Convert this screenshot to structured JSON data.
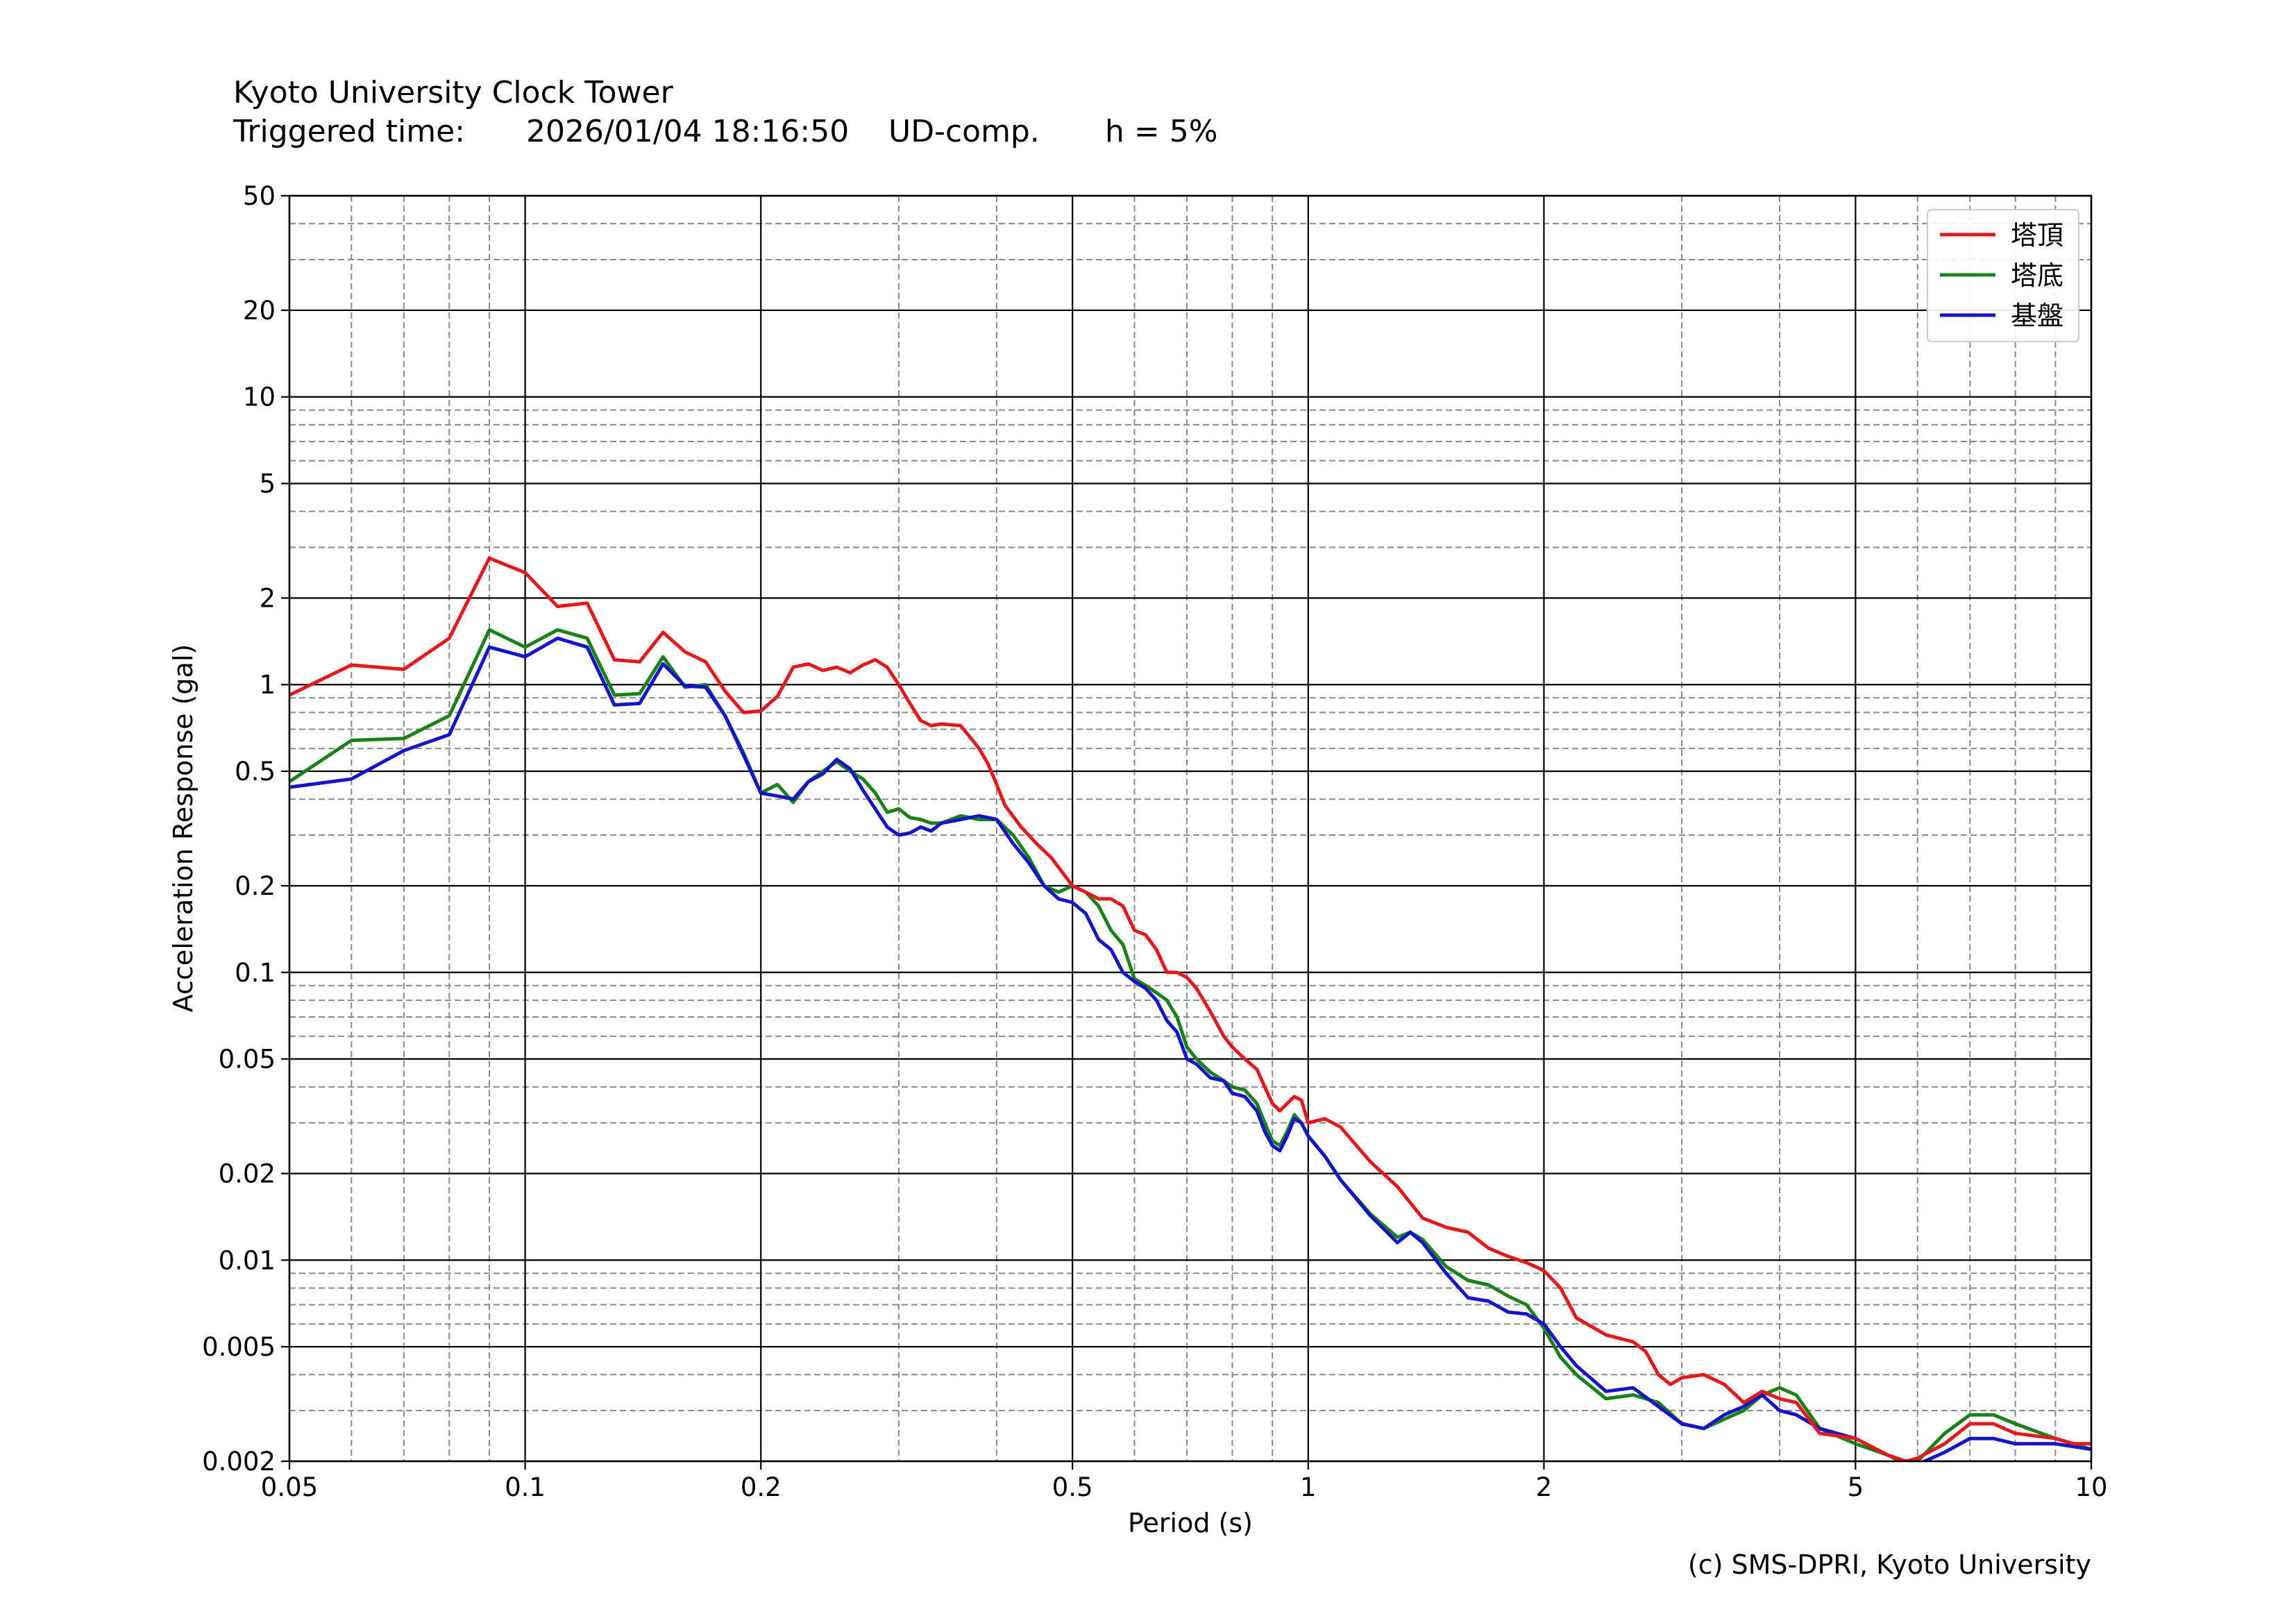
{
  "header": {
    "station": "Kyoto University Clock Tower",
    "trigger_label": "Triggered time:",
    "trigger_time": "2026/01/04 18:16:50",
    "component": "UD-comp.",
    "damping": "h = 5%"
  },
  "copyright": "(c) SMS-DPRI, Kyoto University",
  "chart_data": {
    "type": "line",
    "xscale": "log",
    "yscale": "log",
    "xlabel": "Period (s)",
    "ylabel": "Acceleration Response (gal)",
    "xlim": [
      0.05,
      10
    ],
    "ylim": [
      0.002,
      50
    ],
    "grid": true,
    "legend_position": "top-right",
    "x_ticks": [
      {
        "value": 0.05,
        "label": "0.05"
      },
      {
        "value": 0.1,
        "label": "0.1"
      },
      {
        "value": 0.2,
        "label": "0.2"
      },
      {
        "value": 0.5,
        "label": "0.5"
      },
      {
        "value": 1,
        "label": "1"
      },
      {
        "value": 2,
        "label": "2"
      },
      {
        "value": 5,
        "label": "5"
      },
      {
        "value": 10,
        "label": "10"
      }
    ],
    "y_ticks": [
      {
        "value": 0.002,
        "label": "0.002"
      },
      {
        "value": 0.005,
        "label": "0.005"
      },
      {
        "value": 0.01,
        "label": "0.01"
      },
      {
        "value": 0.02,
        "label": "0.02"
      },
      {
        "value": 0.05,
        "label": "0.05"
      },
      {
        "value": 0.1,
        "label": "0.1"
      },
      {
        "value": 0.2,
        "label": "0.2"
      },
      {
        "value": 0.5,
        "label": "0.5"
      },
      {
        "value": 1,
        "label": "1"
      },
      {
        "value": 2,
        "label": "2"
      },
      {
        "value": 5,
        "label": "5"
      },
      {
        "value": 10,
        "label": "10"
      },
      {
        "value": 20,
        "label": "20"
      },
      {
        "value": 50,
        "label": "50"
      }
    ],
    "series": [
      {
        "name": "塔頂",
        "color": "#e31a1c",
        "points": [
          [
            0.05,
            0.92
          ],
          [
            0.06,
            1.17
          ],
          [
            0.07,
            1.13
          ],
          [
            0.08,
            1.45
          ],
          [
            0.09,
            2.75
          ],
          [
            0.1,
            2.45
          ],
          [
            0.11,
            1.87
          ],
          [
            0.12,
            1.92
          ],
          [
            0.13,
            1.22
          ],
          [
            0.14,
            1.2
          ],
          [
            0.15,
            1.52
          ],
          [
            0.16,
            1.3
          ],
          [
            0.17,
            1.2
          ],
          [
            0.18,
            0.95
          ],
          [
            0.19,
            0.8
          ],
          [
            0.2,
            0.81
          ],
          [
            0.21,
            0.91
          ],
          [
            0.22,
            1.15
          ],
          [
            0.23,
            1.18
          ],
          [
            0.24,
            1.12
          ],
          [
            0.25,
            1.15
          ],
          [
            0.26,
            1.1
          ],
          [
            0.27,
            1.17
          ],
          [
            0.28,
            1.22
          ],
          [
            0.29,
            1.15
          ],
          [
            0.3,
            1.0
          ],
          [
            0.31,
            0.86
          ],
          [
            0.32,
            0.75
          ],
          [
            0.33,
            0.72
          ],
          [
            0.34,
            0.73
          ],
          [
            0.36,
            0.72
          ],
          [
            0.38,
            0.6
          ],
          [
            0.39,
            0.53
          ],
          [
            0.4,
            0.45
          ],
          [
            0.41,
            0.38
          ],
          [
            0.43,
            0.32
          ],
          [
            0.45,
            0.28
          ],
          [
            0.47,
            0.25
          ],
          [
            0.5,
            0.2
          ],
          [
            0.52,
            0.19
          ],
          [
            0.54,
            0.18
          ],
          [
            0.56,
            0.18
          ],
          [
            0.58,
            0.17
          ],
          [
            0.6,
            0.14
          ],
          [
            0.62,
            0.135
          ],
          [
            0.64,
            0.12
          ],
          [
            0.66,
            0.1
          ],
          [
            0.68,
            0.1
          ],
          [
            0.7,
            0.096
          ],
          [
            0.72,
            0.088
          ],
          [
            0.75,
            0.073
          ],
          [
            0.78,
            0.06
          ],
          [
            0.8,
            0.055
          ],
          [
            0.83,
            0.05
          ],
          [
            0.86,
            0.046
          ],
          [
            0.88,
            0.04
          ],
          [
            0.9,
            0.035
          ],
          [
            0.92,
            0.033
          ],
          [
            0.94,
            0.035
          ],
          [
            0.96,
            0.037
          ],
          [
            0.98,
            0.036
          ],
          [
            1.0,
            0.03
          ],
          [
            1.05,
            0.031
          ],
          [
            1.1,
            0.029
          ],
          [
            1.2,
            0.022
          ],
          [
            1.3,
            0.018
          ],
          [
            1.4,
            0.014
          ],
          [
            1.5,
            0.013
          ],
          [
            1.6,
            0.0125
          ],
          [
            1.7,
            0.011
          ],
          [
            1.8,
            0.0103
          ],
          [
            1.9,
            0.0098
          ],
          [
            2.0,
            0.0092
          ],
          [
            2.1,
            0.008
          ],
          [
            2.2,
            0.0063
          ],
          [
            2.4,
            0.0055
          ],
          [
            2.6,
            0.0052
          ],
          [
            2.7,
            0.0048
          ],
          [
            2.8,
            0.004
          ],
          [
            2.9,
            0.0037
          ],
          [
            3.0,
            0.0039
          ],
          [
            3.2,
            0.004
          ],
          [
            3.4,
            0.0037
          ],
          [
            3.6,
            0.0032
          ],
          [
            3.8,
            0.0035
          ],
          [
            4.0,
            0.0033
          ],
          [
            4.2,
            0.0032
          ],
          [
            4.5,
            0.0025
          ],
          [
            5.0,
            0.0024
          ],
          [
            5.5,
            0.0021
          ],
          [
            5.8,
            0.002
          ],
          [
            6.0,
            0.00205
          ],
          [
            6.5,
            0.0023
          ],
          [
            7.0,
            0.0027
          ],
          [
            7.5,
            0.0027
          ],
          [
            8.0,
            0.0025
          ],
          [
            9.0,
            0.0024
          ],
          [
            9.5,
            0.0023
          ],
          [
            10.0,
            0.0023
          ]
        ]
      },
      {
        "name": "塔底",
        "color": "#1a8018",
        "points": [
          [
            0.05,
            0.46
          ],
          [
            0.06,
            0.64
          ],
          [
            0.07,
            0.65
          ],
          [
            0.08,
            0.78
          ],
          [
            0.09,
            1.55
          ],
          [
            0.1,
            1.35
          ],
          [
            0.11,
            1.55
          ],
          [
            0.12,
            1.45
          ],
          [
            0.13,
            0.92
          ],
          [
            0.14,
            0.93
          ],
          [
            0.15,
            1.25
          ],
          [
            0.16,
            0.98
          ],
          [
            0.17,
            1.0
          ],
          [
            0.18,
            0.78
          ],
          [
            0.19,
            0.58
          ],
          [
            0.2,
            0.42
          ],
          [
            0.21,
            0.45
          ],
          [
            0.22,
            0.39
          ],
          [
            0.23,
            0.46
          ],
          [
            0.24,
            0.5
          ],
          [
            0.25,
            0.54
          ],
          [
            0.26,
            0.5
          ],
          [
            0.27,
            0.47
          ],
          [
            0.28,
            0.42
          ],
          [
            0.29,
            0.36
          ],
          [
            0.3,
            0.37
          ],
          [
            0.31,
            0.345
          ],
          [
            0.32,
            0.34
          ],
          [
            0.33,
            0.33
          ],
          [
            0.34,
            0.33
          ],
          [
            0.36,
            0.35
          ],
          [
            0.38,
            0.34
          ],
          [
            0.4,
            0.34
          ],
          [
            0.42,
            0.3
          ],
          [
            0.44,
            0.25
          ],
          [
            0.46,
            0.2
          ],
          [
            0.48,
            0.19
          ],
          [
            0.5,
            0.2
          ],
          [
            0.52,
            0.19
          ],
          [
            0.54,
            0.17
          ],
          [
            0.56,
            0.14
          ],
          [
            0.58,
            0.125
          ],
          [
            0.6,
            0.095
          ],
          [
            0.62,
            0.09
          ],
          [
            0.64,
            0.085
          ],
          [
            0.66,
            0.08
          ],
          [
            0.68,
            0.07
          ],
          [
            0.7,
            0.055
          ],
          [
            0.72,
            0.05
          ],
          [
            0.75,
            0.045
          ],
          [
            0.78,
            0.042
          ],
          [
            0.8,
            0.04
          ],
          [
            0.83,
            0.039
          ],
          [
            0.86,
            0.035
          ],
          [
            0.88,
            0.03
          ],
          [
            0.9,
            0.026
          ],
          [
            0.92,
            0.025
          ],
          [
            0.94,
            0.028
          ],
          [
            0.96,
            0.032
          ],
          [
            0.98,
            0.03
          ],
          [
            1.0,
            0.027
          ],
          [
            1.05,
            0.023
          ],
          [
            1.1,
            0.019
          ],
          [
            1.2,
            0.0145
          ],
          [
            1.3,
            0.012
          ],
          [
            1.35,
            0.0125
          ],
          [
            1.4,
            0.0118
          ],
          [
            1.5,
            0.0095
          ],
          [
            1.6,
            0.0085
          ],
          [
            1.7,
            0.0082
          ],
          [
            1.8,
            0.0075
          ],
          [
            1.9,
            0.007
          ],
          [
            2.0,
            0.0058
          ],
          [
            2.1,
            0.0046
          ],
          [
            2.2,
            0.004
          ],
          [
            2.4,
            0.0033
          ],
          [
            2.6,
            0.0034
          ],
          [
            2.8,
            0.0032
          ],
          [
            3.0,
            0.0027
          ],
          [
            3.2,
            0.0026
          ],
          [
            3.4,
            0.0028
          ],
          [
            3.6,
            0.003
          ],
          [
            3.8,
            0.0034
          ],
          [
            4.0,
            0.0036
          ],
          [
            4.2,
            0.0034
          ],
          [
            4.5,
            0.0026
          ],
          [
            5.0,
            0.0023
          ],
          [
            5.5,
            0.0021
          ],
          [
            5.8,
            0.00195
          ],
          [
            6.0,
            0.002
          ],
          [
            6.5,
            0.0025
          ],
          [
            7.0,
            0.0029
          ],
          [
            7.5,
            0.0029
          ],
          [
            8.0,
            0.0027
          ],
          [
            9.0,
            0.0024
          ],
          [
            10.0,
            0.0022
          ]
        ]
      },
      {
        "name": "基盤",
        "color": "#1414c8",
        "points": [
          [
            0.05,
            0.44
          ],
          [
            0.06,
            0.47
          ],
          [
            0.07,
            0.59
          ],
          [
            0.08,
            0.67
          ],
          [
            0.09,
            1.35
          ],
          [
            0.1,
            1.25
          ],
          [
            0.11,
            1.45
          ],
          [
            0.12,
            1.35
          ],
          [
            0.13,
            0.85
          ],
          [
            0.14,
            0.86
          ],
          [
            0.15,
            1.18
          ],
          [
            0.16,
            0.99
          ],
          [
            0.17,
            0.98
          ],
          [
            0.18,
            0.78
          ],
          [
            0.19,
            0.57
          ],
          [
            0.2,
            0.42
          ],
          [
            0.21,
            0.41
          ],
          [
            0.22,
            0.4
          ],
          [
            0.23,
            0.46
          ],
          [
            0.24,
            0.49
          ],
          [
            0.25,
            0.55
          ],
          [
            0.26,
            0.51
          ],
          [
            0.27,
            0.43
          ],
          [
            0.28,
            0.37
          ],
          [
            0.29,
            0.32
          ],
          [
            0.3,
            0.3
          ],
          [
            0.31,
            0.305
          ],
          [
            0.32,
            0.32
          ],
          [
            0.33,
            0.31
          ],
          [
            0.34,
            0.33
          ],
          [
            0.36,
            0.34
          ],
          [
            0.38,
            0.35
          ],
          [
            0.4,
            0.34
          ],
          [
            0.42,
            0.28
          ],
          [
            0.44,
            0.24
          ],
          [
            0.46,
            0.2
          ],
          [
            0.48,
            0.18
          ],
          [
            0.5,
            0.175
          ],
          [
            0.52,
            0.16
          ],
          [
            0.54,
            0.13
          ],
          [
            0.56,
            0.12
          ],
          [
            0.58,
            0.1
          ],
          [
            0.6,
            0.093
          ],
          [
            0.62,
            0.088
          ],
          [
            0.64,
            0.08
          ],
          [
            0.66,
            0.068
          ],
          [
            0.68,
            0.062
          ],
          [
            0.7,
            0.05
          ],
          [
            0.72,
            0.048
          ],
          [
            0.75,
            0.043
          ],
          [
            0.78,
            0.042
          ],
          [
            0.8,
            0.038
          ],
          [
            0.83,
            0.037
          ],
          [
            0.86,
            0.033
          ],
          [
            0.88,
            0.028
          ],
          [
            0.9,
            0.025
          ],
          [
            0.92,
            0.024
          ],
          [
            0.94,
            0.027
          ],
          [
            0.96,
            0.031
          ],
          [
            0.98,
            0.03
          ],
          [
            1.0,
            0.027
          ],
          [
            1.05,
            0.023
          ],
          [
            1.1,
            0.019
          ],
          [
            1.2,
            0.0143
          ],
          [
            1.3,
            0.0115
          ],
          [
            1.35,
            0.0125
          ],
          [
            1.4,
            0.0115
          ],
          [
            1.5,
            0.009
          ],
          [
            1.6,
            0.0074
          ],
          [
            1.7,
            0.0072
          ],
          [
            1.8,
            0.0066
          ],
          [
            1.9,
            0.0065
          ],
          [
            2.0,
            0.006
          ],
          [
            2.1,
            0.005
          ],
          [
            2.2,
            0.0043
          ],
          [
            2.4,
            0.0035
          ],
          [
            2.6,
            0.0036
          ],
          [
            2.8,
            0.0031
          ],
          [
            3.0,
            0.0027
          ],
          [
            3.2,
            0.0026
          ],
          [
            3.4,
            0.0029
          ],
          [
            3.6,
            0.0031
          ],
          [
            3.8,
            0.0034
          ],
          [
            4.0,
            0.003
          ],
          [
            4.2,
            0.0029
          ],
          [
            4.5,
            0.0026
          ],
          [
            5.0,
            0.0024
          ],
          [
            5.5,
            0.0021
          ],
          [
            5.8,
            0.002
          ],
          [
            6.0,
            0.00195
          ],
          [
            6.5,
            0.00215
          ],
          [
            7.0,
            0.0024
          ],
          [
            7.5,
            0.0024
          ],
          [
            8.0,
            0.0023
          ],
          [
            9.0,
            0.0023
          ],
          [
            10.0,
            0.0022
          ]
        ]
      }
    ]
  }
}
